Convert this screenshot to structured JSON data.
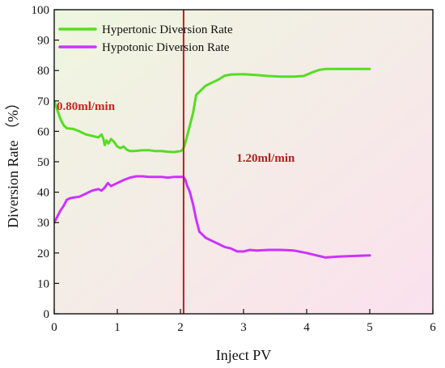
{
  "chart_data": {
    "type": "line",
    "title": "",
    "xlabel": "Inject PV",
    "ylabel": "Diversion Rate （%）",
    "xlim": [
      0,
      6
    ],
    "ylim": [
      0,
      100
    ],
    "xticks": [
      "0",
      "1",
      "2",
      "3",
      "4",
      "5",
      "6"
    ],
    "yticks": [
      "0",
      "10",
      "20",
      "30",
      "40",
      "50",
      "60",
      "70",
      "80",
      "90",
      "100"
    ],
    "grid": false,
    "legend_position": "top-left",
    "background": {
      "top_left_color": "#eef6df",
      "bottom_right_color": "#fbe1ee"
    },
    "vertical_line": {
      "x": 2.05,
      "color": "#b22222"
    },
    "annotations": [
      {
        "text": "0.80ml/min",
        "x": 0.5,
        "y": 67,
        "color": "#cc2222"
      },
      {
        "text": "1.20ml/min",
        "x": 3.35,
        "y": 50,
        "color": "#aa2222"
      }
    ],
    "series": [
      {
        "name": "Hypertonic Diversion Rate",
        "color": "#55dd22",
        "x": [
          0.0,
          0.05,
          0.1,
          0.15,
          0.2,
          0.3,
          0.4,
          0.5,
          0.6,
          0.7,
          0.75,
          0.78,
          0.8,
          0.83,
          0.86,
          0.9,
          0.95,
          1.0,
          1.05,
          1.1,
          1.15,
          1.2,
          1.25,
          1.3,
          1.4,
          1.5,
          1.6,
          1.7,
          1.8,
          1.9,
          2.0,
          2.03,
          2.06,
          2.1,
          2.15,
          2.2,
          2.25,
          2.3,
          2.4,
          2.5,
          2.6,
          2.7,
          2.8,
          3.0,
          3.2,
          3.4,
          3.6,
          3.8,
          3.95,
          4.1,
          4.2,
          4.3,
          4.5,
          4.7,
          4.9,
          5.0
        ],
        "values": [
          70,
          67,
          64,
          62,
          61,
          60.8,
          60,
          59,
          58.5,
          58,
          59,
          57.5,
          55.5,
          57,
          56,
          57.5,
          56.5,
          55,
          54.5,
          55,
          54,
          53.5,
          53.5,
          53.6,
          53.8,
          53.8,
          53.5,
          53.5,
          53.3,
          53.2,
          53.5,
          53.8,
          55,
          58,
          62,
          66,
          72,
          73,
          75,
          76,
          77,
          78.3,
          78.7,
          78.8,
          78.5,
          78.2,
          78,
          78,
          78.2,
          79.5,
          80.2,
          80.5,
          80.5,
          80.5,
          80.5,
          80.5
        ]
      },
      {
        "name": "Hypotonic Diversion Rate",
        "color": "#cc33ff",
        "x": [
          0.0,
          0.05,
          0.1,
          0.15,
          0.2,
          0.25,
          0.3,
          0.4,
          0.5,
          0.6,
          0.7,
          0.75,
          0.8,
          0.85,
          0.9,
          0.95,
          1.0,
          1.1,
          1.2,
          1.3,
          1.4,
          1.5,
          1.6,
          1.7,
          1.8,
          1.9,
          2.0,
          2.05,
          2.08,
          2.1,
          2.15,
          2.2,
          2.25,
          2.3,
          2.35,
          2.4,
          2.5,
          2.6,
          2.7,
          2.8,
          2.9,
          3.0,
          3.1,
          3.2,
          3.4,
          3.6,
          3.8,
          4.0,
          4.2,
          4.3,
          4.5,
          4.7,
          5.0
        ],
        "values": [
          30,
          32,
          34,
          35.5,
          37.5,
          38,
          38.2,
          38.5,
          39.5,
          40.5,
          41,
          40.5,
          41.5,
          43,
          42,
          42.5,
          43,
          44,
          44.8,
          45.2,
          45.2,
          45.0,
          45.0,
          45.0,
          44.8,
          45.0,
          45.0,
          45.0,
          44.0,
          42.5,
          40,
          36,
          31,
          27,
          26,
          25,
          24,
          23,
          22,
          21.5,
          20.5,
          20.5,
          21,
          20.8,
          21,
          21,
          20.8,
          20,
          19,
          18.5,
          18.8,
          19,
          19.2
        ]
      }
    ]
  }
}
